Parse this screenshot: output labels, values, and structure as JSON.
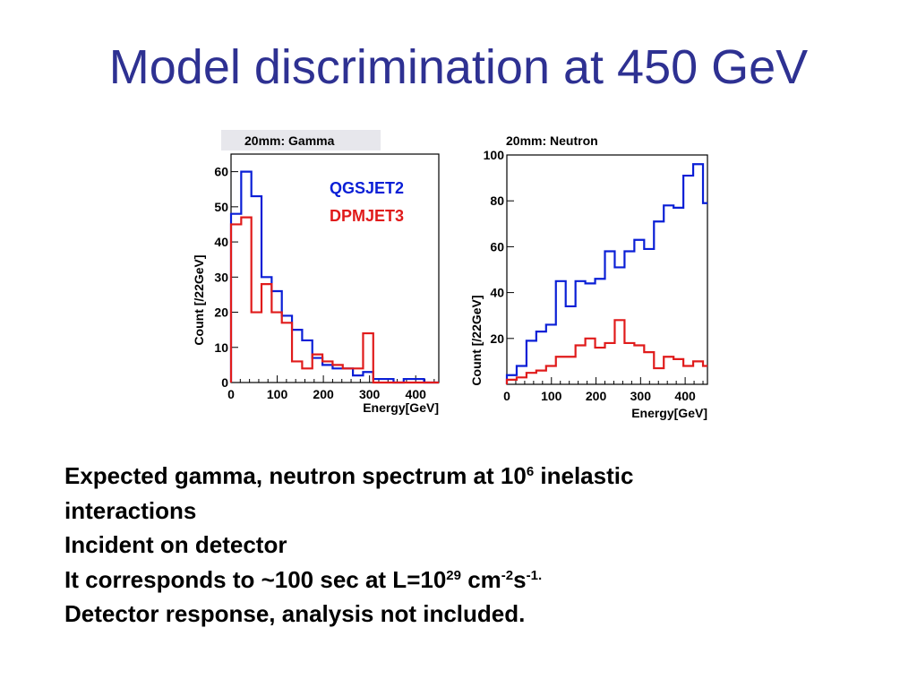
{
  "slide": {
    "title": "Model discrimination at 450 GeV",
    "lines": [
      {
        "parts": [
          {
            "t": "Expected gamma, neutron spectrum at 10"
          },
          {
            "t": "6",
            "sup": true
          },
          {
            "t": " inelastic"
          }
        ]
      },
      {
        "parts": [
          {
            "t": "interactions"
          }
        ]
      },
      {
        "parts": [
          {
            "t": "Incident on detector"
          }
        ]
      },
      {
        "parts": [
          {
            "t": "It corresponds to ~100 sec at L=10"
          },
          {
            "t": "29",
            "sup": true
          },
          {
            "t": " cm"
          },
          {
            "t": "-2",
            "sup": true
          },
          {
            "t": "s"
          },
          {
            "t": "-1.",
            "sup": true
          }
        ]
      },
      {
        "parts": [
          {
            "t": "Detector response, analysis not included."
          }
        ]
      }
    ]
  },
  "chart_data": [
    {
      "type": "histogram",
      "title": "20mm: Gamma",
      "xlabel": "Energy[GeV]",
      "ylabel": "Count [/22GeV]",
      "xlim": [
        0,
        450
      ],
      "ylim": [
        0,
        65
      ],
      "xticks": [
        0,
        100,
        200,
        300,
        400
      ],
      "yticks": [
        0,
        10,
        20,
        30,
        40,
        50,
        60
      ],
      "bin_edges": [
        0,
        22,
        44,
        66,
        88,
        110,
        132,
        154,
        176,
        198,
        220,
        242,
        264,
        286,
        308,
        330,
        352,
        374,
        396,
        418,
        440,
        450
      ],
      "legend": [
        "QGSJET2",
        "DPMJET3"
      ],
      "legend_position": "top-right",
      "series": [
        {
          "name": "QGSJET2",
          "color": "#0a1fd6",
          "values": [
            48,
            60,
            53,
            30,
            26,
            19,
            15,
            12,
            7,
            5,
            4,
            4,
            2,
            3,
            1,
            1,
            0,
            1,
            1,
            0,
            0
          ]
        },
        {
          "name": "DPMJET3",
          "color": "#e01b1b",
          "values": [
            45,
            47,
            20,
            28,
            20,
            17,
            6,
            4,
            8,
            6,
            5,
            4,
            4,
            14,
            0,
            0,
            0,
            0,
            0,
            0,
            0
          ]
        }
      ]
    },
    {
      "type": "histogram",
      "title": "20mm: Neutron",
      "xlabel": "Energy[GeV]",
      "ylabel": "Count [/22GeV]",
      "xlim": [
        0,
        450
      ],
      "ylim": [
        0,
        100
      ],
      "xticks": [
        0,
        100,
        200,
        300,
        400
      ],
      "yticks": [
        20,
        40,
        60,
        80,
        100
      ],
      "bin_edges": [
        0,
        22,
        44,
        66,
        88,
        110,
        132,
        154,
        176,
        198,
        220,
        242,
        264,
        286,
        308,
        330,
        352,
        374,
        396,
        418,
        440,
        450
      ],
      "series": [
        {
          "name": "",
          "color": "#0a1fd6",
          "values": [
            4,
            8,
            19,
            23,
            26,
            45,
            34,
            45,
            44,
            46,
            58,
            51,
            58,
            63,
            59,
            71,
            78,
            77,
            91,
            96,
            79
          ]
        },
        {
          "name": "",
          "color": "#e01b1b",
          "values": [
            2,
            3,
            5,
            6,
            8,
            12,
            12,
            17,
            20,
            16,
            18,
            28,
            18,
            17,
            14,
            7,
            12,
            11,
            8,
            10,
            8
          ]
        }
      ]
    }
  ]
}
